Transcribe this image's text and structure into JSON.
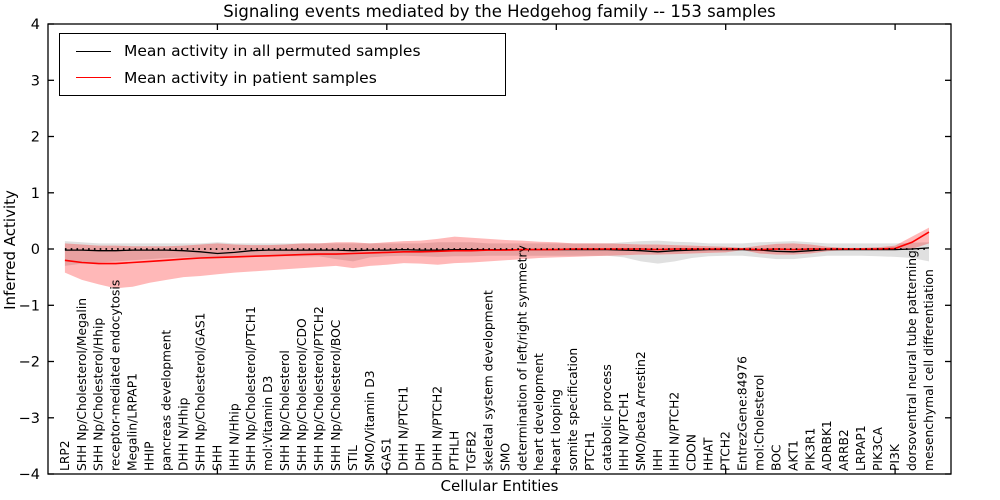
{
  "title": "Signaling events mediated by the Hedgehog family -- 153 samples",
  "axes": {
    "xlabel": "Cellular Entities",
    "ylabel": "Inferred Activity"
  },
  "chart_data": {
    "type": "line",
    "title": "Signaling events mediated by the Hedgehog family -- 153 samples",
    "xlabel": "Cellular Entities",
    "ylabel": "Inferred Activity",
    "ylim": [
      -4,
      4
    ],
    "yticks": [
      -4,
      -3,
      -2,
      -1,
      0,
      1,
      2,
      3,
      4
    ],
    "xticks": [
      10,
      20,
      30,
      40,
      50
    ],
    "x_range": [
      0,
      53.3
    ],
    "grid": false,
    "legend_position": "upper left",
    "categories": [
      "LRP2",
      "SHH Np/Cholesterol/Megalin",
      "SHH Np/Cholesterol/Hhip",
      "receptor-mediated endocytosis",
      "Megalin/LRPAP1",
      "HHIP",
      "pancreas development",
      "DHH N/Hhip",
      "SHH Np/Cholesterol/GAS1",
      "SHH",
      "IHH N/Hhip",
      "SHH Np/Cholesterol/PTCH1",
      "mol:Vitamin D3",
      "SHH Np/Cholesterol",
      "SHH Np/Cholesterol/CDO",
      "SHH Np/Cholesterol/PTCH2",
      "SHH Np/Cholesterol/BOC",
      "STIL",
      "SMO/Vitamin D3",
      "GAS1",
      "DHH N/PTCH1",
      "DHH",
      "DHH N/PTCH2",
      "PTHLH",
      "TGFB2",
      "skeletal system development",
      "SMO",
      "determination of left/right symmetry",
      "heart development",
      "heart looping",
      "somite specification",
      "PTCH1",
      "catabolic process",
      "IHH N/PTCH1",
      "SMO/beta Arrestin2",
      "IHH",
      "IHH N/PTCH2",
      "CDON",
      "HHAT",
      "PTCH2",
      "EntrezGene:84976",
      "mol:Cholesterol",
      "BOC",
      "AKT1",
      "PIK3R1",
      "ADRBK1",
      "ARRB2",
      "LRPAP1",
      "PIK3CA",
      "PI3K",
      "dorsoventral neural tube patterning",
      "mesenchymal cell differentiation"
    ],
    "series": [
      {
        "name": "Mean activity in all permuted samples",
        "color": "#000000",
        "band_color": "#000000",
        "band_opacity": 0.12,
        "values": [
          -0.02,
          -0.02,
          -0.03,
          -0.03,
          -0.02,
          -0.02,
          -0.02,
          -0.03,
          -0.05,
          -0.08,
          -0.06,
          -0.03,
          -0.02,
          -0.02,
          -0.02,
          -0.02,
          -0.02,
          -0.03,
          -0.02,
          -0.02,
          -0.01,
          -0.02,
          -0.02,
          -0.01,
          -0.01,
          -0.01,
          -0.01,
          -0.01,
          -0.01,
          -0.01,
          -0.01,
          -0.01,
          -0.01,
          -0.02,
          -0.03,
          -0.05,
          -0.03,
          -0.02,
          -0.01,
          -0.01,
          -0.01,
          -0.02,
          -0.04,
          -0.05,
          -0.03,
          -0.01,
          -0.01,
          -0.01,
          -0.01,
          -0.01,
          0.0,
          0.02
        ],
        "band_upper": [
          0.14,
          0.12,
          0.1,
          0.1,
          0.1,
          0.1,
          0.1,
          0.1,
          0.1,
          0.12,
          0.1,
          0.1,
          0.1,
          0.1,
          0.1,
          0.1,
          0.1,
          0.1,
          0.1,
          0.1,
          0.1,
          0.1,
          0.12,
          0.12,
          0.12,
          0.1,
          0.1,
          0.1,
          0.1,
          0.1,
          0.1,
          0.1,
          0.1,
          0.12,
          0.14,
          0.15,
          0.13,
          0.12,
          0.1,
          0.1,
          0.1,
          0.12,
          0.13,
          0.14,
          0.12,
          0.1,
          0.1,
          0.1,
          0.1,
          0.1,
          0.11,
          0.12
        ],
        "band_lower": [
          -0.3,
          -0.26,
          -0.24,
          -0.22,
          -0.2,
          -0.18,
          -0.16,
          -0.15,
          -0.15,
          -0.16,
          -0.15,
          -0.14,
          -0.13,
          -0.13,
          -0.13,
          -0.13,
          -0.18,
          -0.22,
          -0.15,
          -0.13,
          -0.12,
          -0.13,
          -0.14,
          -0.13,
          -0.13,
          -0.12,
          -0.12,
          -0.12,
          -0.12,
          -0.12,
          -0.12,
          -0.12,
          -0.12,
          -0.15,
          -0.22,
          -0.26,
          -0.22,
          -0.16,
          -0.13,
          -0.12,
          -0.12,
          -0.15,
          -0.18,
          -0.18,
          -0.15,
          -0.12,
          -0.12,
          -0.12,
          -0.13,
          -0.14,
          -0.16,
          -0.22
        ]
      },
      {
        "name": "Mean activity in patient samples",
        "color": "#ff0000",
        "band_color": "#ff0000",
        "band_opacity": 0.28,
        "values": [
          -0.2,
          -0.24,
          -0.26,
          -0.26,
          -0.24,
          -0.22,
          -0.2,
          -0.18,
          -0.16,
          -0.15,
          -0.14,
          -0.13,
          -0.12,
          -0.11,
          -0.1,
          -0.09,
          -0.09,
          -0.08,
          -0.07,
          -0.06,
          -0.05,
          -0.05,
          -0.04,
          -0.03,
          -0.03,
          -0.02,
          -0.02,
          -0.01,
          -0.01,
          -0.01,
          0.0,
          0.0,
          0.0,
          0.0,
          0.0,
          -0.01,
          0.0,
          0.0,
          0.0,
          0.0,
          0.0,
          -0.01,
          0.0,
          -0.01,
          0.0,
          0.0,
          0.0,
          0.0,
          0.0,
          0.01,
          0.12,
          0.3
        ],
        "band_upper": [
          0.1,
          0.08,
          0.06,
          0.06,
          0.05,
          0.05,
          0.05,
          0.06,
          0.08,
          0.1,
          0.08,
          0.07,
          0.07,
          0.08,
          0.1,
          0.1,
          0.12,
          0.12,
          0.1,
          0.12,
          0.14,
          0.15,
          0.18,
          0.22,
          0.2,
          0.18,
          0.16,
          0.15,
          0.13,
          0.12,
          0.1,
          0.1,
          0.1,
          0.09,
          0.08,
          0.08,
          0.07,
          0.06,
          0.05,
          0.04,
          0.02,
          0.06,
          0.09,
          0.1,
          0.08,
          0.04,
          0.02,
          0.02,
          0.03,
          0.06,
          0.22,
          0.38
        ],
        "band_lower": [
          -0.42,
          -0.55,
          -0.63,
          -0.7,
          -0.67,
          -0.6,
          -0.55,
          -0.5,
          -0.48,
          -0.45,
          -0.42,
          -0.4,
          -0.38,
          -0.36,
          -0.34,
          -0.32,
          -0.3,
          -0.34,
          -0.3,
          -0.28,
          -0.25,
          -0.26,
          -0.28,
          -0.25,
          -0.24,
          -0.22,
          -0.2,
          -0.18,
          -0.16,
          -0.15,
          -0.14,
          -0.13,
          -0.12,
          -0.11,
          -0.1,
          -0.1,
          -0.09,
          -0.08,
          -0.07,
          -0.06,
          -0.02,
          -0.08,
          -0.1,
          -0.1,
          -0.08,
          -0.04,
          -0.02,
          -0.02,
          -0.02,
          -0.02,
          0.0,
          0.1
        ]
      }
    ],
    "zero_line": {
      "value": 0,
      "style": "dotted",
      "color": "#000000"
    }
  }
}
